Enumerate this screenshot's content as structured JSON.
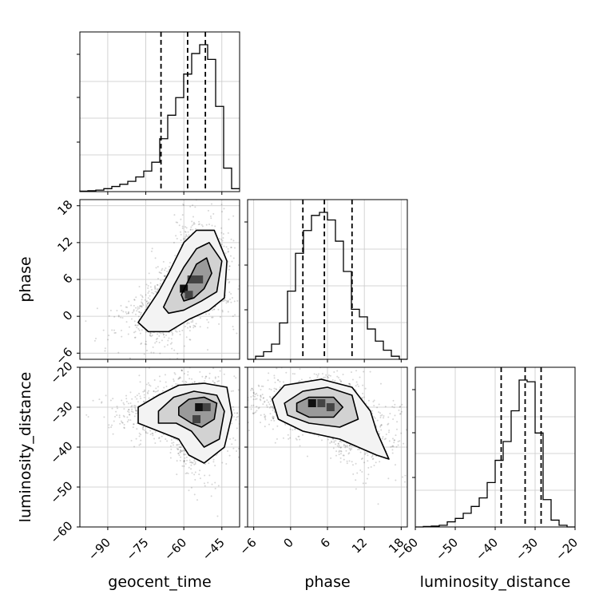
{
  "chart_data": {
    "type": "corner",
    "parameters": [
      "geocent_time",
      "phase",
      "luminosity_distance"
    ],
    "ranges": {
      "geocent_time": [
        -101,
        -38
      ],
      "phase": [
        -7,
        19
      ],
      "luminosity_distance": [
        -60,
        -20
      ]
    },
    "ticks": {
      "geocent_time": [
        -90,
        -75,
        -60,
        -45
      ],
      "phase": [
        -6,
        0,
        6,
        12,
        18
      ],
      "luminosity_distance": [
        -60,
        -50,
        -40,
        -30,
        -20
      ]
    },
    "grid": true,
    "histograms": [
      {
        "param": "geocent_time",
        "bins_from": -101,
        "bin_width": 3.15,
        "counts": [
          0.003,
          0.006,
          0.01,
          0.02,
          0.035,
          0.05,
          0.07,
          0.1,
          0.14,
          0.2,
          0.36,
          0.52,
          0.64,
          0.8,
          0.94,
          1.0,
          0.9,
          0.58,
          0.16,
          0.02
        ],
        "quantiles": [
          -69,
          -58.5,
          -51.5
        ]
      },
      {
        "param": "phase",
        "bins_from": -7,
        "bin_width": 1.3,
        "counts": [
          0.0,
          0.02,
          0.05,
          0.1,
          0.24,
          0.45,
          0.7,
          0.85,
          0.95,
          0.97,
          0.92,
          0.78,
          0.58,
          0.33,
          0.28,
          0.2,
          0.12,
          0.06,
          0.02,
          0.0
        ],
        "quantiles": [
          2,
          5.5,
          10
        ]
      },
      {
        "param": "luminosity_distance",
        "bins_from": -60,
        "bin_width": 2,
        "counts": [
          0.0,
          0.003,
          0.005,
          0.01,
          0.03,
          0.05,
          0.08,
          0.12,
          0.17,
          0.26,
          0.39,
          0.5,
          0.68,
          0.86,
          0.85,
          0.55,
          0.16,
          0.04,
          0.01,
          0.0
        ],
        "quantiles": [
          -38.5,
          -32.5,
          -28.5
        ]
      }
    ],
    "pairs": [
      {
        "x": "geocent_time",
        "y": "phase",
        "density_center": [
          -57,
          5
        ],
        "contours": [
          [
            [
              -78,
              -1
            ],
            [
              -70,
              4
            ],
            [
              -66,
              7
            ],
            [
              -60,
              12
            ],
            [
              -55,
              14
            ],
            [
              -48,
              14
            ],
            [
              -43,
              9
            ],
            [
              -44,
              3
            ],
            [
              -50,
              1
            ],
            [
              -58,
              -0.5
            ],
            [
              -66,
              -2.5
            ],
            [
              -74,
              -2.5
            ],
            [
              -78,
              -1
            ]
          ],
          [
            [
              -68,
              1.5
            ],
            [
              -64,
              5
            ],
            [
              -60,
              8
            ],
            [
              -55,
              11
            ],
            [
              -50,
              12
            ],
            [
              -45,
              9
            ],
            [
              -47,
              4
            ],
            [
              -53,
              2.5
            ],
            [
              -60,
              1
            ],
            [
              -66,
              0.5
            ],
            [
              -68,
              1.5
            ]
          ],
          [
            [
              -61,
              3.5
            ],
            [
              -58,
              6
            ],
            [
              -55,
              8.5
            ],
            [
              -51,
              9.5
            ],
            [
              -49,
              7
            ],
            [
              -52,
              4.5
            ],
            [
              -56,
              3
            ],
            [
              -60,
              2.5
            ],
            [
              -61,
              3.5
            ]
          ]
        ],
        "dense_cells": [
          [
            -60,
            4.5
          ],
          [
            -57,
            6
          ],
          [
            -54,
            6
          ],
          [
            -58,
            3.5
          ]
        ]
      },
      {
        "x": "geocent_time",
        "y": "luminosity_distance",
        "density_center": [
          -54,
          -30
        ],
        "contours": [
          [
            [
              -78,
              -30
            ],
            [
              -70,
              -27
            ],
            [
              -62,
              -24.5
            ],
            [
              -52,
              -24
            ],
            [
              -43,
              -25
            ],
            [
              -41,
              -32
            ],
            [
              -44,
              -40
            ],
            [
              -52,
              -44
            ],
            [
              -58,
              -42
            ],
            [
              -62,
              -38
            ],
            [
              -70,
              -36
            ],
            [
              -78,
              -34
            ],
            [
              -78,
              -30
            ]
          ],
          [
            [
              -70,
              -31
            ],
            [
              -64,
              -27.5
            ],
            [
              -56,
              -26
            ],
            [
              -47,
              -27
            ],
            [
              -44,
              -31
            ],
            [
              -46,
              -38
            ],
            [
              -52,
              -40
            ],
            [
              -57,
              -36
            ],
            [
              -63,
              -34
            ],
            [
              -70,
              -34
            ],
            [
              -70,
              -31
            ]
          ],
          [
            [
              -62,
              -30
            ],
            [
              -58,
              -28
            ],
            [
              -52,
              -27.5
            ],
            [
              -47,
              -29
            ],
            [
              -48,
              -33
            ],
            [
              -53,
              -35
            ],
            [
              -57,
              -34
            ],
            [
              -62,
              -32
            ],
            [
              -62,
              -30
            ]
          ]
        ],
        "dense_cells": [
          [
            -54,
            -30
          ],
          [
            -51,
            -30
          ],
          [
            -55,
            -33
          ]
        ]
      },
      {
        "x": "phase",
        "y": "luminosity_distance",
        "density_center": [
          4.5,
          -30
        ],
        "contours": [
          [
            [
              -3,
              -28
            ],
            [
              -1,
              -24.5
            ],
            [
              5,
              -23
            ],
            [
              10,
              -25
            ],
            [
              13,
              -31
            ],
            [
              14,
              -36
            ],
            [
              16,
              -43
            ],
            [
              14,
              -42
            ],
            [
              8,
              -38
            ],
            [
              2,
              -36
            ],
            [
              -2,
              -33
            ],
            [
              -3,
              -28
            ]
          ],
          [
            [
              -1,
              -29
            ],
            [
              2,
              -26
            ],
            [
              6,
              -25
            ],
            [
              10,
              -27
            ],
            [
              11,
              -33
            ],
            [
              8,
              -35
            ],
            [
              3,
              -34
            ],
            [
              -0.5,
              -32
            ],
            [
              -1,
              -29
            ]
          ],
          [
            [
              1,
              -29
            ],
            [
              3,
              -27.5
            ],
            [
              7,
              -27.5
            ],
            [
              8.5,
              -30
            ],
            [
              7,
              -32.5
            ],
            [
              3,
              -32.5
            ],
            [
              1,
              -31
            ],
            [
              1,
              -29
            ]
          ]
        ],
        "dense_cells": [
          [
            3.5,
            -29
          ],
          [
            5,
            -29
          ],
          [
            6.5,
            -30
          ]
        ]
      }
    ]
  }
}
